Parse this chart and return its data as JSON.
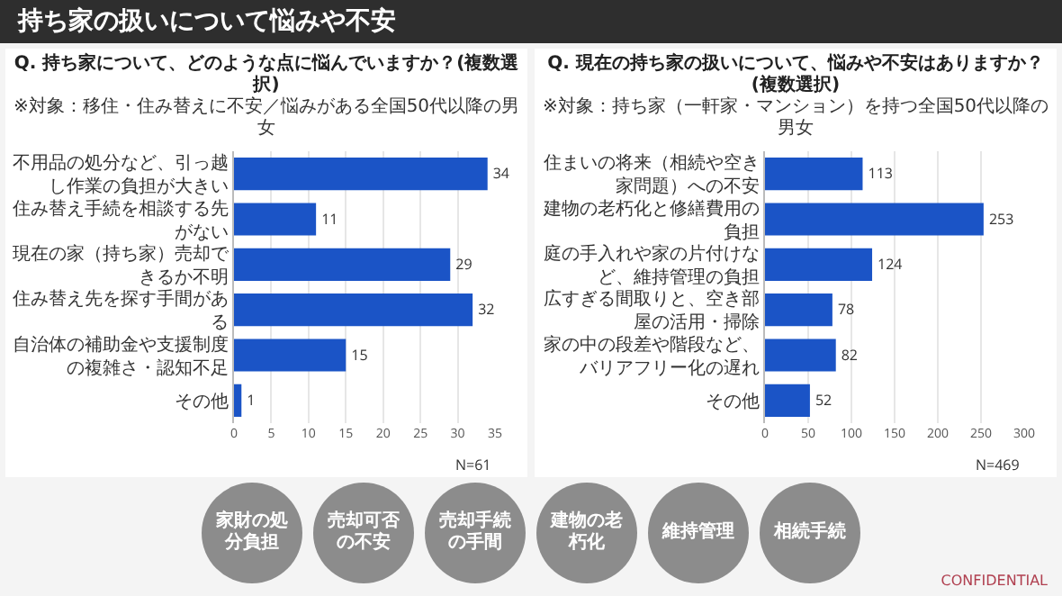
{
  "chart_data": [
    {
      "type": "bar",
      "orientation": "horizontal",
      "title": "Q. 持ち家について、どのような点に悩んでいますか？(複数選択)",
      "subtitle": "※対象：移住・住み替えに不安／悩みがある全国50代以降の男女",
      "categories": [
        "不用品の処分など、引っ越し作業の負担が大きい",
        "住み替え手続を相談する先がない",
        "現在の家（持ち家）売却できるか不明",
        "住み替え先を探す手間がある",
        "自治体の補助金や支援制度の複雑さ・認知不足",
        "その他"
      ],
      "values": [
        34,
        11,
        29,
        32,
        15,
        1
      ],
      "color": "#1b54c6",
      "xlim": [
        0,
        35
      ],
      "xticks": [
        0,
        5,
        10,
        15,
        20,
        25,
        30,
        35
      ],
      "grid": "x",
      "data_labels": true,
      "annotations": [
        "N=61"
      ]
    },
    {
      "type": "bar",
      "orientation": "horizontal",
      "title": "Q. 現在の持ち家の扱いについて、悩みや不安はありますか？(複数選択)",
      "subtitle": "※対象：持ち家（一軒家・マンション）を持つ全国50代以降の男女",
      "categories": [
        "住まいの将来（相続や空き家問題）への不安",
        "建物の老朽化と修繕費用の負担",
        "庭の手入れや家の片付けなど、維持管理の負担",
        "広すぎる間取りと、空き部屋の活用・掃除",
        "家の中の段差や階段など、バリアフリー化の遅れ",
        "その他"
      ],
      "values": [
        113,
        253,
        124,
        78,
        82,
        52
      ],
      "color": "#1b54c6",
      "xlim": [
        0,
        300
      ],
      "xticks": [
        0,
        50,
        100,
        150,
        200,
        250,
        300
      ],
      "grid": "x",
      "data_labels": true,
      "annotations": [
        "N=469"
      ]
    },
    {
      "type": "other",
      "title": "持ち家の扱いについて悩みや不安",
      "annotations": [
        "家財の処分負担",
        "売却可否の不安",
        "売却手続の手間",
        "建物の老朽化",
        "維持管理",
        "相続手続",
        "CONFIDENTIAL"
      ]
    }
  ]
}
